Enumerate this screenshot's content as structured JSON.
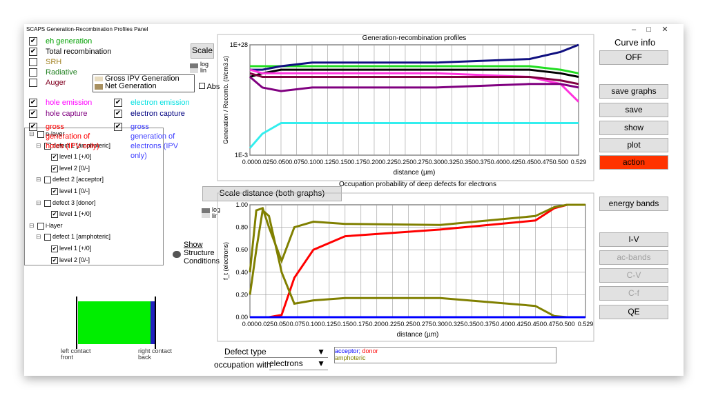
{
  "window": {
    "title": "SCAPS Generation-Recombination Profiles Panel"
  },
  "checks": [
    {
      "label": "eh generation",
      "checked": true,
      "color": "#00a000"
    },
    {
      "label": "Total recombination",
      "checked": true,
      "color": "#000000"
    },
    {
      "label": "SRH",
      "checked": false,
      "color": "#a08020"
    },
    {
      "label": "Radiative",
      "checked": false,
      "color": "#208020"
    },
    {
      "label": "Auger",
      "checked": false,
      "color": "#800020"
    },
    {
      "label": "hole emission",
      "checked": true,
      "color": "#ff00ff"
    },
    {
      "label": "electron emission",
      "checked": true,
      "color": "#00e0e0"
    },
    {
      "label": "hole capture",
      "checked": true,
      "color": "#800080"
    },
    {
      "label": "electron capture",
      "checked": true,
      "color": "#000080"
    },
    {
      "label": "gross generation of holes (IPV only)",
      "checked": true,
      "color": "#ff0000"
    },
    {
      "label": "gross generation of electrons (IPV only)",
      "checked": true,
      "color": "#4040ff"
    }
  ],
  "ipv_legend": [
    "Gross IPV Generation",
    "Net Generation"
  ],
  "scale_button": "Scale",
  "log": "log",
  "lin": "lin",
  "abs": "Abs",
  "tree": [
    {
      "label": "p-layer",
      "level": 0,
      "checked": false
    },
    {
      "label": "defect 1 [amphoteric]",
      "level": 1,
      "checked": false
    },
    {
      "label": "level 1 [+/0]",
      "level": 2,
      "checked": true
    },
    {
      "label": "level 2 [0/-]",
      "level": 2,
      "checked": true
    },
    {
      "label": "defect 2 [acceptor]",
      "level": 1,
      "checked": false
    },
    {
      "label": "level 1 [0/-]",
      "level": 2,
      "checked": true
    },
    {
      "label": "defect 3 [donor]",
      "level": 1,
      "checked": false
    },
    {
      "label": "level 1 [+/0]",
      "level": 2,
      "checked": true
    },
    {
      "label": "i-layer",
      "level": 0,
      "checked": false
    },
    {
      "label": "defect 1 [amphoteric]",
      "level": 1,
      "checked": false
    },
    {
      "label": "level 1 [+/0]",
      "level": 2,
      "checked": true
    },
    {
      "label": "level 2 [0/-]",
      "level": 2,
      "checked": true
    }
  ],
  "show_structure": [
    "Show",
    "Structure",
    "Conditions"
  ],
  "structure": {
    "left": [
      "left contact",
      "front"
    ],
    "right": [
      "right contact",
      "back"
    ]
  },
  "scale_distance": "Scale distance (both graphs)",
  "defect_type": "Defect type",
  "occupation_with": "occupation with",
  "electrons": "electrons",
  "defect_legend": {
    "acceptor": "acceptor;",
    "donor": "donor",
    "amphoteric": "amphoteric"
  },
  "curve_info": "Curve info",
  "buttons": [
    {
      "label": "OFF"
    },
    {
      "label": "save graphs"
    },
    {
      "label": "save"
    },
    {
      "label": "show"
    },
    {
      "label": "plot"
    },
    {
      "label": "action",
      "color": "#ff3300"
    },
    {
      "label": "energy bands"
    },
    {
      "label": "I-V"
    },
    {
      "label": "ac-bands",
      "disabled": true
    },
    {
      "label": "C-V",
      "disabled": true
    },
    {
      "label": "C-f",
      "disabled": true
    },
    {
      "label": "QE"
    }
  ],
  "charts": [
    {
      "type": "line",
      "title": "Generation-recombination profiles",
      "ylabel": "Generation / Recomb. (#/cm3.s)",
      "xlabel": "distance (µm)",
      "log": true,
      "ylim": [
        0.001,
        1e+28
      ],
      "yticks": [
        {
          "value": 1e+28,
          "label": "1E+28"
        },
        {
          "value": 0.001,
          "label": "1E-3"
        }
      ],
      "xlim": [
        0,
        0.529
      ],
      "xticks": [
        {
          "value": 0,
          "label": "0.000"
        },
        {
          "value": 0.025,
          "label": "0.025"
        },
        {
          "value": 0.05,
          "label": "0.050"
        },
        {
          "value": 0.075,
          "label": "0.075"
        },
        {
          "value": 0.1,
          "label": "0.100"
        },
        {
          "value": 0.125,
          "label": "0.125"
        },
        {
          "value": 0.15,
          "label": "0.150"
        },
        {
          "value": 0.175,
          "label": "0.175"
        },
        {
          "value": 0.2,
          "label": "0.200"
        },
        {
          "value": 0.225,
          "label": "0.225"
        },
        {
          "value": 0.25,
          "label": "0.250"
        },
        {
          "value": 0.275,
          "label": "0.275"
        },
        {
          "value": 0.3,
          "label": "0.300"
        },
        {
          "value": 0.325,
          "label": "0.325"
        },
        {
          "value": 0.35,
          "label": "0.350"
        },
        {
          "value": 0.375,
          "label": "0.375"
        },
        {
          "value": 0.4,
          "label": "0.400"
        },
        {
          "value": 0.425,
          "label": "0.425"
        },
        {
          "value": 0.45,
          "label": "0.450"
        },
        {
          "value": 0.475,
          "label": "0.475"
        },
        {
          "value": 0.5,
          "label": "0.500"
        },
        {
          "value": 0.529,
          "label": "0.529"
        }
      ],
      "x": [
        0,
        0.02,
        0.05,
        0.1,
        0.3,
        0.45,
        0.5,
        0.529
      ],
      "series": [
        {
          "color": "#22dd22",
          "values": [
            1e+22,
            1e+22,
            1e+22,
            1e+22,
            1e+22,
            1e+22,
            1e+21,
            1e+20
          ]
        },
        {
          "color": "#101080",
          "values": [
            1e+21,
            1e+21,
            1e+22,
            1e+23,
            1e+23,
            1e+24,
            1e+26,
            1e+28
          ]
        },
        {
          "color": "#000000",
          "values": [
            1e+19,
            1e+20,
            1e+21,
            1e+21,
            1e+21,
            1e+21,
            1e+20,
            1e+19
          ]
        },
        {
          "color": "#ff33dd",
          "values": [
            1e+21,
            1e+20,
            1e+20,
            1e+20,
            1e+20,
            1e+19,
            1e+17,
            1000000000000.0
          ]
        },
        {
          "color": "#800080",
          "values": [
            1e+19,
            1e+16,
            1000000000000000.0,
            1e+16,
            1e+16,
            1e+17,
            1e+17,
            1e+16
          ]
        },
        {
          "color": "#800040",
          "values": [
            1e+20,
            1e+19,
            1e+19,
            1e+19,
            1e+19,
            1e+19,
            1e+18,
            1e+17
          ]
        },
        {
          "color": "#33eeee",
          "values": [
            0.1,
            1000,
            1000000,
            1000000,
            1000000,
            1000000,
            1000000,
            1000000
          ]
        }
      ]
    },
    {
      "type": "line",
      "title": "Occupation probability of deep defects for electrons",
      "ylabel": "f_t (electrons)",
      "xlabel": "distance (µm)",
      "log": false,
      "ylim": [
        0,
        1
      ],
      "yticks": [
        {
          "value": 0,
          "label": "0.00"
        },
        {
          "value": 0.2,
          "label": "0.20"
        },
        {
          "value": 0.4,
          "label": "0.40"
        },
        {
          "value": 0.6,
          "label": "0.60"
        },
        {
          "value": 0.8,
          "label": "0.80"
        },
        {
          "value": 1,
          "label": "1.00"
        }
      ],
      "xlim": [
        0,
        0.529
      ],
      "xticks": [
        {
          "value": 0,
          "label": "0.000"
        },
        {
          "value": 0.025,
          "label": "0.025"
        },
        {
          "value": 0.05,
          "label": "0.050"
        },
        {
          "value": 0.075,
          "label": "0.075"
        },
        {
          "value": 0.1,
          "label": "0.100"
        },
        {
          "value": 0.125,
          "label": "0.125"
        },
        {
          "value": 0.15,
          "label": "0.150"
        },
        {
          "value": 0.175,
          "label": "0.175"
        },
        {
          "value": 0.2,
          "label": "0.200"
        },
        {
          "value": 0.225,
          "label": "0.225"
        },
        {
          "value": 0.25,
          "label": "0.250"
        },
        {
          "value": 0.275,
          "label": "0.275"
        },
        {
          "value": 0.3,
          "label": "0.300"
        },
        {
          "value": 0.325,
          "label": "0.325"
        },
        {
          "value": 0.35,
          "label": "0.350"
        },
        {
          "value": 0.375,
          "label": "0.375"
        },
        {
          "value": 0.4,
          "label": "0.400"
        },
        {
          "value": 0.425,
          "label": "0.425"
        },
        {
          "value": 0.45,
          "label": "0.450"
        },
        {
          "value": 0.475,
          "label": "0.475"
        },
        {
          "value": 0.5,
          "label": "0.500"
        },
        {
          "value": 0.529,
          "label": "0.529"
        }
      ],
      "x": [
        0,
        0.01,
        0.02,
        0.03,
        0.05,
        0.07,
        0.1,
        0.15,
        0.3,
        0.45,
        0.48,
        0.5,
        0.529
      ],
      "series": [
        {
          "color": "#ff0000",
          "values": [
            0,
            0,
            0,
            0,
            0.02,
            0.35,
            0.6,
            0.72,
            0.78,
            0.86,
            0.97,
            1,
            1
          ]
        },
        {
          "color": "#808000",
          "values": [
            0.4,
            0.95,
            0.97,
            0.8,
            0.5,
            0.8,
            0.85,
            0.83,
            0.82,
            0.9,
            0.98,
            1,
            1
          ]
        },
        {
          "color": "#808000",
          "values": [
            0.2,
            0.6,
            0.95,
            0.9,
            0.4,
            0.12,
            0.15,
            0.17,
            0.17,
            0.1,
            0.01,
            0,
            0
          ]
        },
        {
          "color": "#0000ff",
          "values": [
            0,
            0,
            0,
            0,
            0,
            0,
            0,
            0,
            0,
            0,
            0,
            0,
            0
          ]
        }
      ]
    }
  ]
}
